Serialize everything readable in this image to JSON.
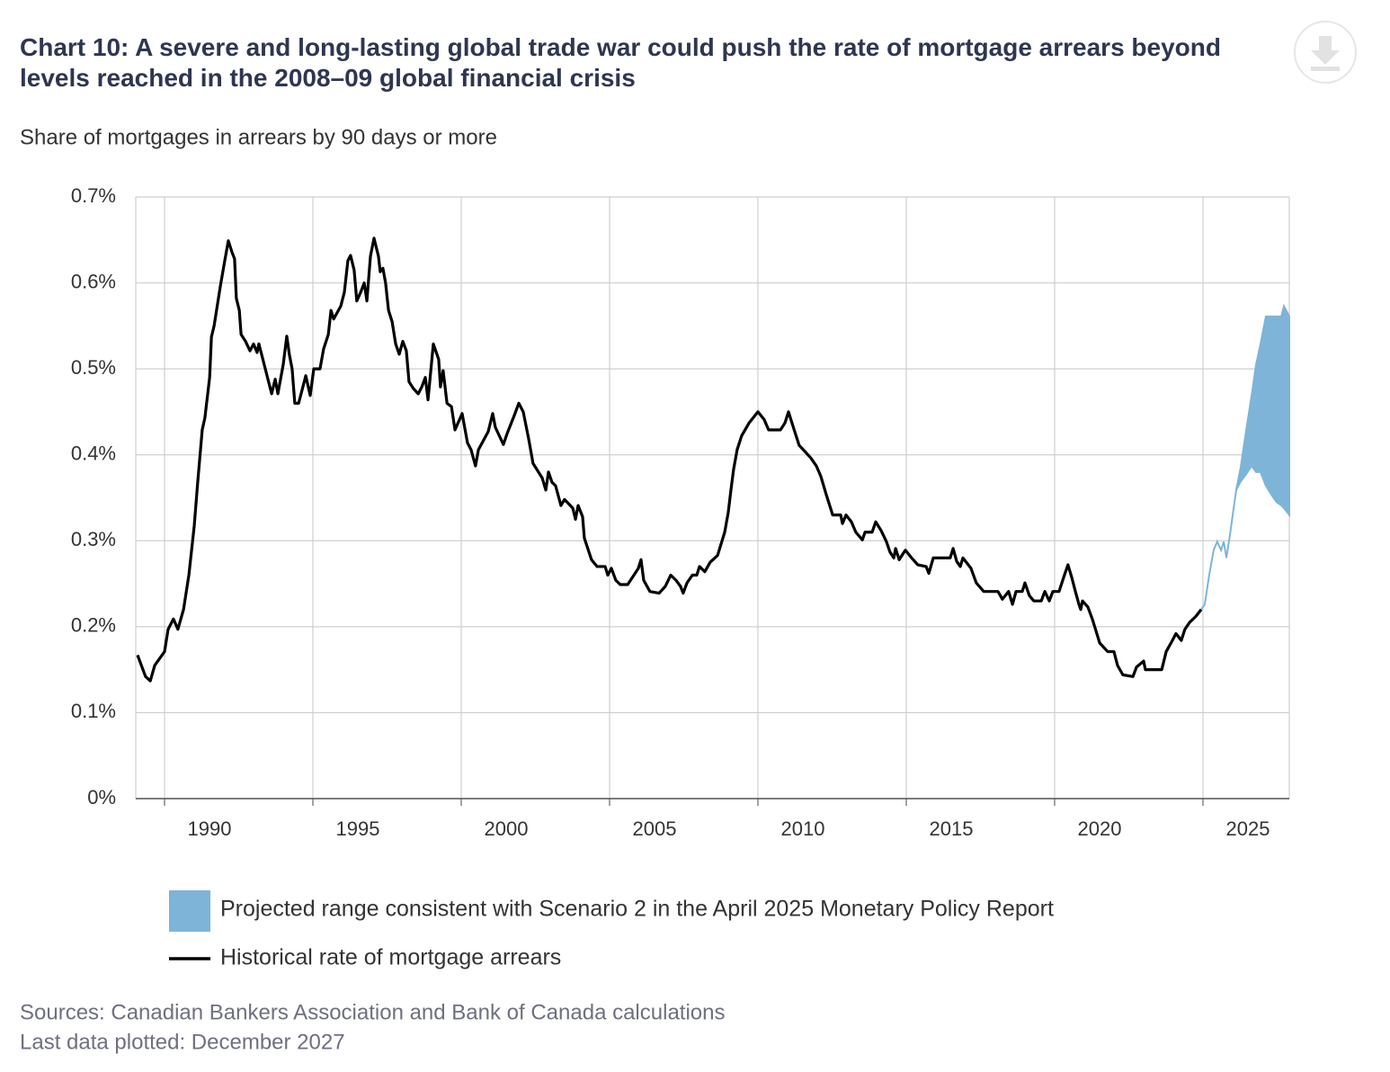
{
  "chart_data": {
    "type": "line",
    "title": "Chart 10: A severe and long-lasting global trade war could push the rate of mortgage arrears beyond levels reached in the 2008–09 global financial crisis",
    "subtitle": "Share of mortgages in arrears by 90 days or more",
    "xlim": [
      1989.03,
      2027.91
    ],
    "xticks": [
      1990,
      1995,
      2000,
      2005,
      2010,
      2015,
      2020,
      2025
    ],
    "ylim": [
      0,
      0.7
    ],
    "yticks": [
      {
        "value": 0,
        "label": "0%"
      },
      {
        "value": 0.1,
        "label": "0.1%"
      },
      {
        "value": 0.2,
        "label": "0.2%"
      },
      {
        "value": 0.3,
        "label": "0.3%"
      },
      {
        "value": 0.4,
        "label": "0.4%"
      },
      {
        "value": 0.5,
        "label": "0.5%"
      },
      {
        "value": 0.6,
        "label": "0.6%"
      },
      {
        "value": 0.7,
        "label": "0.7%"
      }
    ],
    "grid": true,
    "band": {
      "name": "Projected range consistent with Scenario 2 in the April 2025 Monetary Policy Report",
      "color": "#7db4d8",
      "x": [
        2024.94,
        2025.06,
        2025.21,
        2025.36,
        2025.48,
        2025.61,
        2025.7,
        2025.79,
        2025.91,
        2026.12,
        2026.27,
        2026.45,
        2026.64,
        2026.79,
        2026.94,
        2027.12,
        2027.3,
        2027.48,
        2027.64,
        2027.73,
        2027.91
      ],
      "upper": [
        0.22,
        0.226,
        0.26,
        0.289,
        0.299,
        0.289,
        0.299,
        0.28,
        0.307,
        0.359,
        0.385,
        0.427,
        0.469,
        0.505,
        0.529,
        0.561,
        0.561,
        0.561,
        0.561,
        0.573,
        0.561
      ],
      "lower": [
        0.22,
        0.226,
        0.26,
        0.289,
        0.299,
        0.289,
        0.299,
        0.28,
        0.307,
        0.359,
        0.369,
        0.377,
        0.387,
        0.38,
        0.38,
        0.364,
        0.354,
        0.345,
        0.341,
        0.338,
        0.33
      ]
    },
    "series": [
      {
        "name": "Historical rate of mortgage arrears",
        "color": "#000000",
        "x": [
          1989.09,
          1989.36,
          1989.52,
          1989.67,
          1990.0,
          1990.12,
          1990.3,
          1990.45,
          1990.64,
          1990.82,
          1991.0,
          1991.12,
          1991.27,
          1991.36,
          1991.52,
          1991.58,
          1991.67,
          1991.88,
          1992.03,
          1992.15,
          1992.27,
          1992.36,
          1992.42,
          1992.52,
          1992.58,
          1992.73,
          1992.88,
          1993.0,
          1993.12,
          1993.18,
          1993.3,
          1993.61,
          1993.73,
          1993.82,
          1994.0,
          1994.12,
          1994.21,
          1994.3,
          1994.39,
          1994.52,
          1994.76,
          1994.91,
          1995.03,
          1995.24,
          1995.36,
          1995.52,
          1995.61,
          1995.7,
          1995.94,
          1996.06,
          1996.18,
          1996.27,
          1996.39,
          1996.48,
          1996.61,
          1996.73,
          1996.82,
          1996.94,
          1997.06,
          1997.21,
          1997.27,
          1997.36,
          1997.45,
          1997.55,
          1997.67,
          1997.79,
          1997.91,
          1998.03,
          1998.15,
          1998.24,
          1998.39,
          1998.55,
          1998.67,
          1998.79,
          1998.88,
          1999.06,
          1999.24,
          1999.3,
          1999.39,
          1999.52,
          1999.67,
          1999.79,
          2000.03,
          2000.21,
          2000.33,
          2000.48,
          2000.58,
          2000.91,
          2001.06,
          2001.15,
          2001.42,
          2001.55,
          2001.79,
          2001.94,
          2002.09,
          2002.27,
          2002.42,
          2002.73,
          2002.85,
          2002.94,
          2003.06,
          2003.18,
          2003.36,
          2003.48,
          2003.76,
          2003.85,
          2003.94,
          2004.09,
          2004.15,
          2004.39,
          2004.58,
          2004.85,
          2004.94,
          2005.06,
          2005.21,
          2005.36,
          2005.61,
          2005.82,
          2005.97,
          2006.06,
          2006.15,
          2006.36,
          2006.67,
          2006.88,
          2007.06,
          2007.24,
          2007.39,
          2007.48,
          2007.61,
          2007.79,
          2007.94,
          2008.03,
          2008.21,
          2008.39,
          2008.64,
          2008.88,
          2009.0,
          2009.09,
          2009.18,
          2009.3,
          2009.45,
          2009.7,
          2010.0,
          2010.21,
          2010.36,
          2010.76,
          2010.91,
          2011.03,
          2011.24,
          2011.39,
          2011.58,
          2011.79,
          2011.97,
          2012.12,
          2012.3,
          2012.52,
          2012.79,
          2012.85,
          2012.97,
          2013.15,
          2013.3,
          2013.52,
          2013.61,
          2013.85,
          2013.97,
          2014.15,
          2014.33,
          2014.45,
          2014.58,
          2014.64,
          2014.76,
          2014.97,
          2015.18,
          2015.39,
          2015.67,
          2015.76,
          2015.91,
          2016.48,
          2016.58,
          2016.7,
          2016.82,
          2016.91,
          2017.18,
          2017.36,
          2017.61,
          2018.09,
          2018.24,
          2018.45,
          2018.58,
          2018.7,
          2018.91,
          2019.0,
          2019.15,
          2019.3,
          2019.55,
          2019.67,
          2019.82,
          2019.94,
          2020.15,
          2020.33,
          2020.45,
          2020.58,
          2020.7,
          2020.82,
          2020.88,
          2020.94,
          2021.12,
          2021.27,
          2021.36,
          2021.52,
          2021.79,
          2022.0,
          2022.12,
          2022.3,
          2022.64,
          2022.76,
          2023.0,
          2023.06,
          2023.61,
          2023.76,
          2023.97,
          2024.09,
          2024.27,
          2024.39,
          2024.55,
          2024.76,
          2024.94
        ],
        "values": [
          0.167,
          0.142,
          0.137,
          0.155,
          0.171,
          0.197,
          0.209,
          0.197,
          0.22,
          0.26,
          0.317,
          0.369,
          0.429,
          0.443,
          0.49,
          0.537,
          0.55,
          0.596,
          0.626,
          0.649,
          0.636,
          0.628,
          0.582,
          0.568,
          0.54,
          0.532,
          0.521,
          0.529,
          0.519,
          0.529,
          0.513,
          0.471,
          0.488,
          0.471,
          0.505,
          0.538,
          0.516,
          0.5,
          0.46,
          0.46,
          0.492,
          0.469,
          0.5,
          0.5,
          0.523,
          0.54,
          0.568,
          0.558,
          0.573,
          0.589,
          0.626,
          0.632,
          0.615,
          0.579,
          0.589,
          0.6,
          0.579,
          0.631,
          0.652,
          0.631,
          0.613,
          0.617,
          0.6,
          0.568,
          0.555,
          0.529,
          0.517,
          0.532,
          0.521,
          0.485,
          0.477,
          0.471,
          0.479,
          0.49,
          0.464,
          0.529,
          0.511,
          0.479,
          0.498,
          0.46,
          0.456,
          0.429,
          0.448,
          0.414,
          0.406,
          0.387,
          0.406,
          0.427,
          0.448,
          0.432,
          0.412,
          0.425,
          0.446,
          0.46,
          0.45,
          0.419,
          0.39,
          0.373,
          0.359,
          0.38,
          0.368,
          0.364,
          0.341,
          0.348,
          0.338,
          0.325,
          0.341,
          0.328,
          0.303,
          0.278,
          0.27,
          0.27,
          0.26,
          0.268,
          0.254,
          0.249,
          0.249,
          0.26,
          0.268,
          0.278,
          0.254,
          0.241,
          0.239,
          0.247,
          0.26,
          0.254,
          0.247,
          0.239,
          0.251,
          0.26,
          0.26,
          0.27,
          0.264,
          0.275,
          0.283,
          0.31,
          0.333,
          0.359,
          0.383,
          0.406,
          0.422,
          0.437,
          0.45,
          0.441,
          0.429,
          0.429,
          0.437,
          0.45,
          0.427,
          0.411,
          0.404,
          0.396,
          0.387,
          0.375,
          0.354,
          0.33,
          0.33,
          0.32,
          0.33,
          0.322,
          0.31,
          0.301,
          0.31,
          0.31,
          0.322,
          0.312,
          0.299,
          0.287,
          0.28,
          0.291,
          0.278,
          0.289,
          0.28,
          0.272,
          0.27,
          0.262,
          0.28,
          0.28,
          0.291,
          0.276,
          0.27,
          0.28,
          0.268,
          0.251,
          0.241,
          0.241,
          0.232,
          0.241,
          0.226,
          0.241,
          0.241,
          0.251,
          0.236,
          0.23,
          0.23,
          0.241,
          0.23,
          0.241,
          0.241,
          0.26,
          0.272,
          0.257,
          0.241,
          0.226,
          0.22,
          0.23,
          0.223,
          0.209,
          0.199,
          0.181,
          0.171,
          0.171,
          0.155,
          0.144,
          0.142,
          0.153,
          0.16,
          0.15,
          0.15,
          0.171,
          0.184,
          0.192,
          0.184,
          0.197,
          0.205,
          0.212,
          0.22
        ]
      }
    ],
    "notes": [
      "Sources: Canadian Bankers Association and Bank of Canada calculations",
      "Last data plotted: December 2027"
    ]
  }
}
